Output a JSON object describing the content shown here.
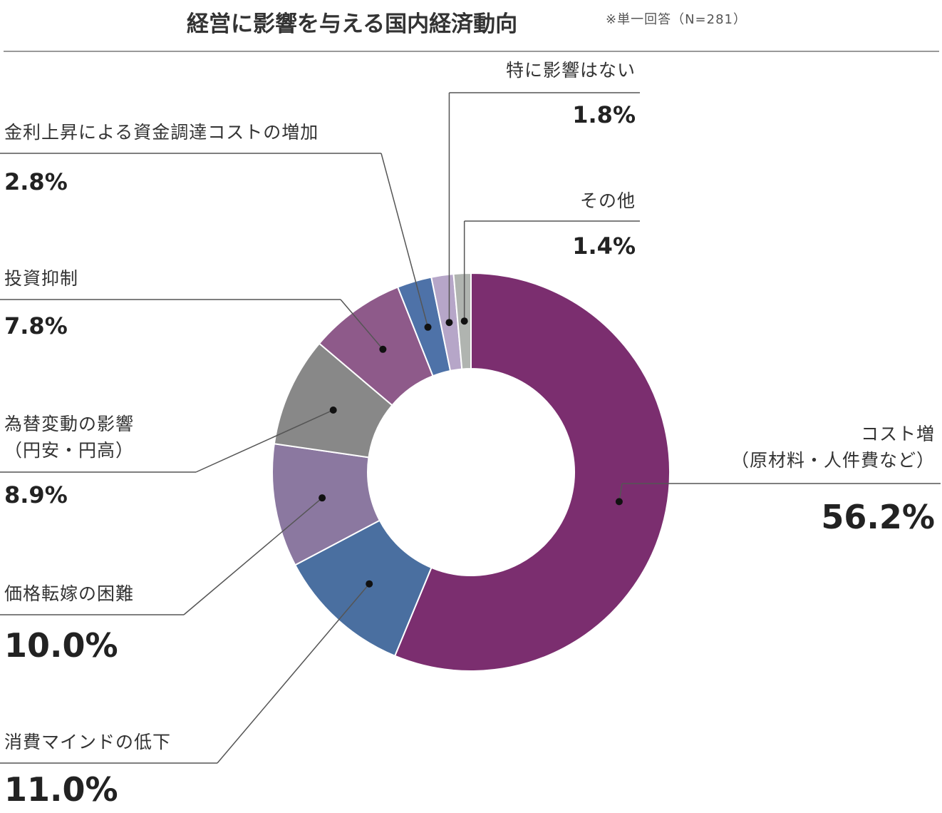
{
  "chart_data": {
    "type": "donut",
    "title": "経営に影響を与える国内経済動向",
    "subtitle": "※単一回答（N=281）",
    "categories": [
      "コスト増\n（原材料・人件費など）",
      "消費マインドの低下",
      "価格転嫁の困難",
      "為替変動の影響\n（円安・円高）",
      "投資抑制",
      "金利上昇による資金調達コストの増加",
      "特に影響はない",
      "その他"
    ],
    "values": [
      56.2,
      11.0,
      10.0,
      8.9,
      7.8,
      2.8,
      1.8,
      1.4
    ],
    "value_labels": [
      "56.2%",
      "11.0%",
      "10.0%",
      "8.9%",
      "7.8%",
      "2.8%",
      "1.8%",
      "1.4%"
    ],
    "colors": [
      "#7b2e6f",
      "#4a6fa0",
      "#8b78a0",
      "#888888",
      "#8e5a8a",
      "#4e72a8",
      "#b6a6c8",
      "#b0b4b0"
    ]
  }
}
